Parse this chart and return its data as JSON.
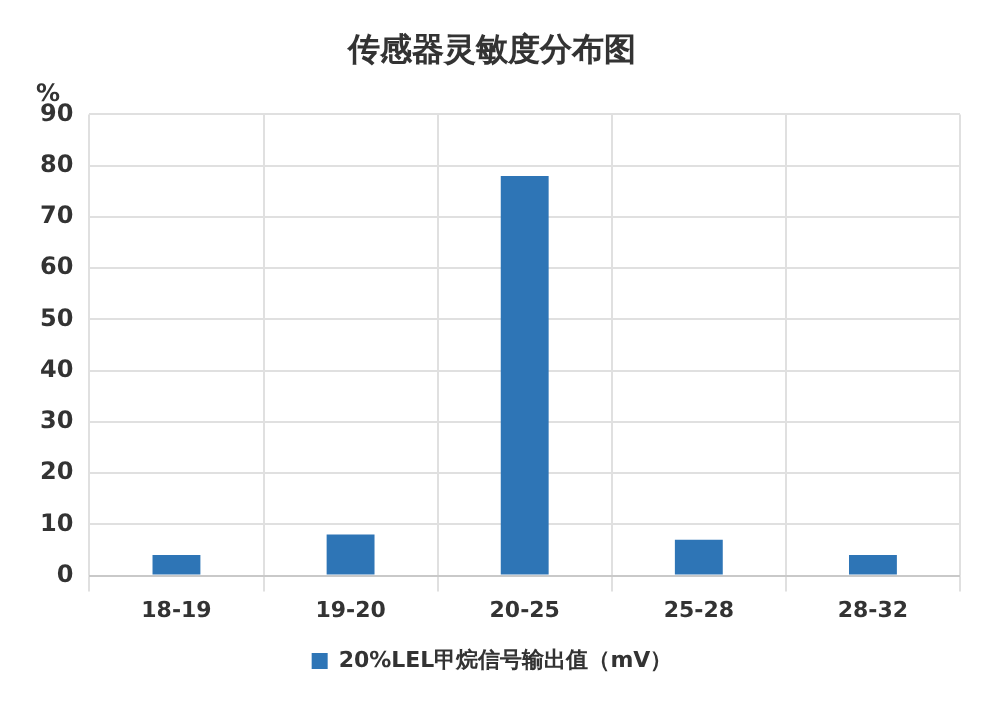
{
  "chart_data": {
    "type": "bar",
    "title": "传感器灵敏度分布图",
    "ylabel": "%",
    "categories": [
      "18-19",
      "19-20",
      "20-25",
      "25-28",
      "28-32"
    ],
    "series": [
      {
        "name": "20%LEL甲烷信号输出值（mV）",
        "color": "#2e75b6",
        "values": [
          4,
          8,
          78,
          7,
          4
        ]
      }
    ],
    "ylim": [
      0,
      90
    ],
    "yticks": [
      0,
      10,
      20,
      30,
      40,
      50,
      60,
      70,
      80,
      90
    ],
    "grid": true,
    "legend": "bottom"
  }
}
